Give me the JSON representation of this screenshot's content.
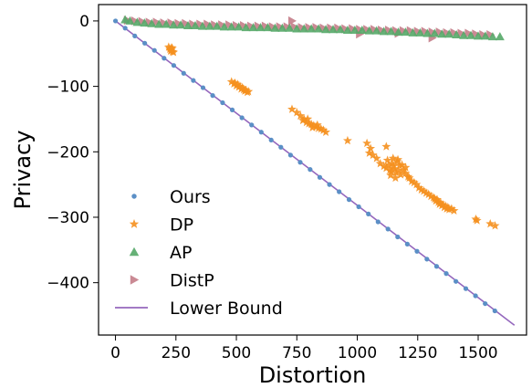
{
  "chart_data": {
    "type": "scatter",
    "xlabel": "Distortion",
    "ylabel": "Privacy",
    "xlim": [
      -70,
      1700
    ],
    "ylim": [
      -480,
      25
    ],
    "xticks": [
      0,
      250,
      500,
      750,
      1000,
      1250,
      1500
    ],
    "yticks": [
      0,
      -100,
      -200,
      -300,
      -400
    ],
    "xtick_labels": [
      "0",
      "250",
      "500",
      "750",
      "1000",
      "1250",
      "1500"
    ],
    "ytick_labels": [
      "0",
      "−100",
      "−200",
      "−300",
      "−400"
    ],
    "grid": false,
    "legend_position": "bottom-left",
    "series": [
      {
        "name": "Ours",
        "marker": "circle",
        "color": "#5b8fc6",
        "points": [
          [
            0,
            0
          ],
          [
            40,
            -11
          ],
          [
            80,
            -23
          ],
          [
            121,
            -34
          ],
          [
            161,
            -45
          ],
          [
            201,
            -57
          ],
          [
            241,
            -68
          ],
          [
            282,
            -80
          ],
          [
            322,
            -91
          ],
          [
            362,
            -102
          ],
          [
            402,
            -114
          ],
          [
            443,
            -125
          ],
          [
            483,
            -136
          ],
          [
            523,
            -148
          ],
          [
            563,
            -159
          ],
          [
            603,
            -170
          ],
          [
            644,
            -182
          ],
          [
            684,
            -193
          ],
          [
            724,
            -205
          ],
          [
            764,
            -216
          ],
          [
            805,
            -227
          ],
          [
            845,
            -239
          ],
          [
            885,
            -250
          ],
          [
            925,
            -261
          ],
          [
            966,
            -273
          ],
          [
            1006,
            -284
          ],
          [
            1046,
            -295
          ],
          [
            1086,
            -307
          ],
          [
            1127,
            -318
          ],
          [
            1167,
            -330
          ],
          [
            1207,
            -341
          ],
          [
            1247,
            -352
          ],
          [
            1288,
            -364
          ],
          [
            1328,
            -375
          ],
          [
            1368,
            -386
          ],
          [
            1408,
            -398
          ],
          [
            1449,
            -409
          ],
          [
            1489,
            -420
          ],
          [
            1529,
            -432
          ],
          [
            1569,
            -443
          ]
        ]
      },
      {
        "name": "DP",
        "marker": "star",
        "color": "#f5901e",
        "points": [
          [
            220,
            -40
          ],
          [
            225,
            -43
          ],
          [
            230,
            -45
          ],
          [
            235,
            -42
          ],
          [
            240,
            -48
          ],
          [
            228,
            -46
          ],
          [
            236,
            -47
          ],
          [
            232,
            -41
          ],
          [
            480,
            -93
          ],
          [
            490,
            -96
          ],
          [
            500,
            -99
          ],
          [
            505,
            -97
          ],
          [
            510,
            -101
          ],
          [
            520,
            -104
          ],
          [
            525,
            -102
          ],
          [
            530,
            -105
          ],
          [
            535,
            -107
          ],
          [
            540,
            -106
          ],
          [
            545,
            -109
          ],
          [
            550,
            -108
          ],
          [
            495,
            -95
          ],
          [
            515,
            -100
          ],
          [
            730,
            -135
          ],
          [
            750,
            -140
          ],
          [
            765,
            -145
          ],
          [
            780,
            -150
          ],
          [
            790,
            -155
          ],
          [
            800,
            -157
          ],
          [
            810,
            -158
          ],
          [
            820,
            -160
          ],
          [
            830,
            -162
          ],
          [
            840,
            -164
          ],
          [
            850,
            -165
          ],
          [
            860,
            -167
          ],
          [
            870,
            -170
          ],
          [
            775,
            -152
          ],
          [
            795,
            -150
          ],
          [
            815,
            -163
          ],
          [
            835,
            -159
          ],
          [
            960,
            -183
          ],
          [
            1040,
            -187
          ],
          [
            1055,
            -195
          ],
          [
            1050,
            -202
          ],
          [
            1065,
            -205
          ],
          [
            1080,
            -210
          ],
          [
            1095,
            -218
          ],
          [
            1110,
            -222
          ],
          [
            1120,
            -225
          ],
          [
            1130,
            -220
          ],
          [
            1135,
            -228
          ],
          [
            1140,
            -230
          ],
          [
            1145,
            -218
          ],
          [
            1150,
            -222
          ],
          [
            1155,
            -226
          ],
          [
            1160,
            -232
          ],
          [
            1165,
            -215
          ],
          [
            1170,
            -229
          ],
          [
            1175,
            -221
          ],
          [
            1180,
            -235
          ],
          [
            1190,
            -228
          ],
          [
            1200,
            -233
          ],
          [
            1210,
            -238
          ],
          [
            1125,
            -213
          ],
          [
            1138,
            -236
          ],
          [
            1148,
            -210
          ],
          [
            1158,
            -240
          ],
          [
            1168,
            -212
          ],
          [
            1185,
            -220
          ],
          [
            1215,
            -240
          ],
          [
            1225,
            -245
          ],
          [
            1235,
            -247
          ],
          [
            1245,
            -250
          ],
          [
            1255,
            -255
          ],
          [
            1265,
            -258
          ],
          [
            1275,
            -260
          ],
          [
            1285,
            -263
          ],
          [
            1295,
            -265
          ],
          [
            1305,
            -268
          ],
          [
            1315,
            -270
          ],
          [
            1320,
            -272
          ],
          [
            1325,
            -275
          ],
          [
            1330,
            -273
          ],
          [
            1335,
            -277
          ],
          [
            1340,
            -280
          ],
          [
            1345,
            -278
          ],
          [
            1350,
            -282
          ],
          [
            1355,
            -281
          ],
          [
            1360,
            -285
          ],
          [
            1365,
            -283
          ],
          [
            1370,
            -287
          ],
          [
            1375,
            -285
          ],
          [
            1380,
            -288
          ],
          [
            1390,
            -287
          ],
          [
            1400,
            -290
          ],
          [
            1120,
            -192
          ],
          [
            1200,
            -224
          ],
          [
            1490,
            -303
          ],
          [
            1495,
            -305
          ],
          [
            1550,
            -310
          ],
          [
            1570,
            -313
          ]
        ]
      },
      {
        "name": "AP",
        "marker": "triangle-up",
        "color": "#55a868",
        "points": [
          [
            40,
            2
          ],
          [
            60,
            0
          ],
          [
            90,
            -2
          ],
          [
            120,
            -3
          ],
          [
            150,
            -4
          ],
          [
            180,
            -5
          ],
          [
            210,
            -5
          ],
          [
            240,
            -6
          ],
          [
            270,
            -6
          ],
          [
            300,
            -7
          ],
          [
            330,
            -7
          ],
          [
            360,
            -8
          ],
          [
            390,
            -8
          ],
          [
            420,
            -8
          ],
          [
            450,
            -9
          ],
          [
            480,
            -9
          ],
          [
            510,
            -9
          ],
          [
            540,
            -10
          ],
          [
            570,
            -10
          ],
          [
            600,
            -10
          ],
          [
            630,
            -10
          ],
          [
            660,
            -11
          ],
          [
            690,
            -11
          ],
          [
            720,
            -11
          ],
          [
            750,
            -12
          ],
          [
            780,
            -12
          ],
          [
            810,
            -12
          ],
          [
            840,
            -12
          ],
          [
            870,
            -13
          ],
          [
            900,
            -13
          ],
          [
            930,
            -13
          ],
          [
            960,
            -14
          ],
          [
            990,
            -14
          ],
          [
            1020,
            -14
          ],
          [
            1050,
            -15
          ],
          [
            1080,
            -15
          ],
          [
            1110,
            -16
          ],
          [
            1140,
            -16
          ],
          [
            1170,
            -17
          ],
          [
            1200,
            -17
          ],
          [
            1230,
            -18
          ],
          [
            1260,
            -18
          ],
          [
            1290,
            -19
          ],
          [
            1320,
            -19
          ],
          [
            1350,
            -20
          ],
          [
            1380,
            -20
          ],
          [
            1410,
            -21
          ],
          [
            1440,
            -22
          ],
          [
            1470,
            -22
          ],
          [
            1500,
            -23
          ],
          [
            1530,
            -23
          ],
          [
            1560,
            -24
          ],
          [
            1590,
            -24
          ]
        ]
      },
      {
        "name": "DistP",
        "marker": "triangle-right",
        "color": "#c47d88",
        "points": [
          [
            50,
            1
          ],
          [
            80,
            0
          ],
          [
            110,
            -1
          ],
          [
            140,
            -2
          ],
          [
            170,
            -2
          ],
          [
            200,
            -3
          ],
          [
            230,
            -3
          ],
          [
            260,
            -4
          ],
          [
            290,
            -4
          ],
          [
            320,
            -5
          ],
          [
            350,
            -5
          ],
          [
            380,
            -5
          ],
          [
            410,
            -6
          ],
          [
            440,
            -6
          ],
          [
            470,
            -6
          ],
          [
            500,
            -7
          ],
          [
            530,
            -7
          ],
          [
            560,
            -8
          ],
          [
            590,
            -8
          ],
          [
            620,
            -8
          ],
          [
            650,
            -9
          ],
          [
            680,
            -9
          ],
          [
            710,
            -9
          ],
          [
            740,
            -9
          ],
          [
            770,
            -10
          ],
          [
            800,
            -10
          ],
          [
            830,
            -10
          ],
          [
            860,
            -11
          ],
          [
            890,
            -11
          ],
          [
            920,
            -11
          ],
          [
            950,
            -12
          ],
          [
            980,
            -12
          ],
          [
            1010,
            -13
          ],
          [
            1040,
            -13
          ],
          [
            1070,
            -13
          ],
          [
            1100,
            -14
          ],
          [
            1130,
            -14
          ],
          [
            1160,
            -15
          ],
          [
            1190,
            -15
          ],
          [
            1220,
            -15
          ],
          [
            1250,
            -16
          ],
          [
            1280,
            -16
          ],
          [
            1310,
            -17
          ],
          [
            1340,
            -17
          ],
          [
            1370,
            -18
          ],
          [
            1400,
            -18
          ],
          [
            1430,
            -19
          ],
          [
            1460,
            -19
          ],
          [
            1490,
            -20
          ],
          [
            1520,
            -21
          ],
          [
            1550,
            -21
          ],
          [
            730,
            0
          ],
          [
            1010,
            -20
          ],
          [
            1170,
            -19
          ],
          [
            1310,
            -26
          ]
        ]
      },
      {
        "name": "Lower Bound",
        "marker": "line",
        "color": "#9467bd",
        "points": [
          [
            0,
            0
          ],
          [
            1650,
            -465
          ]
        ]
      }
    ]
  }
}
